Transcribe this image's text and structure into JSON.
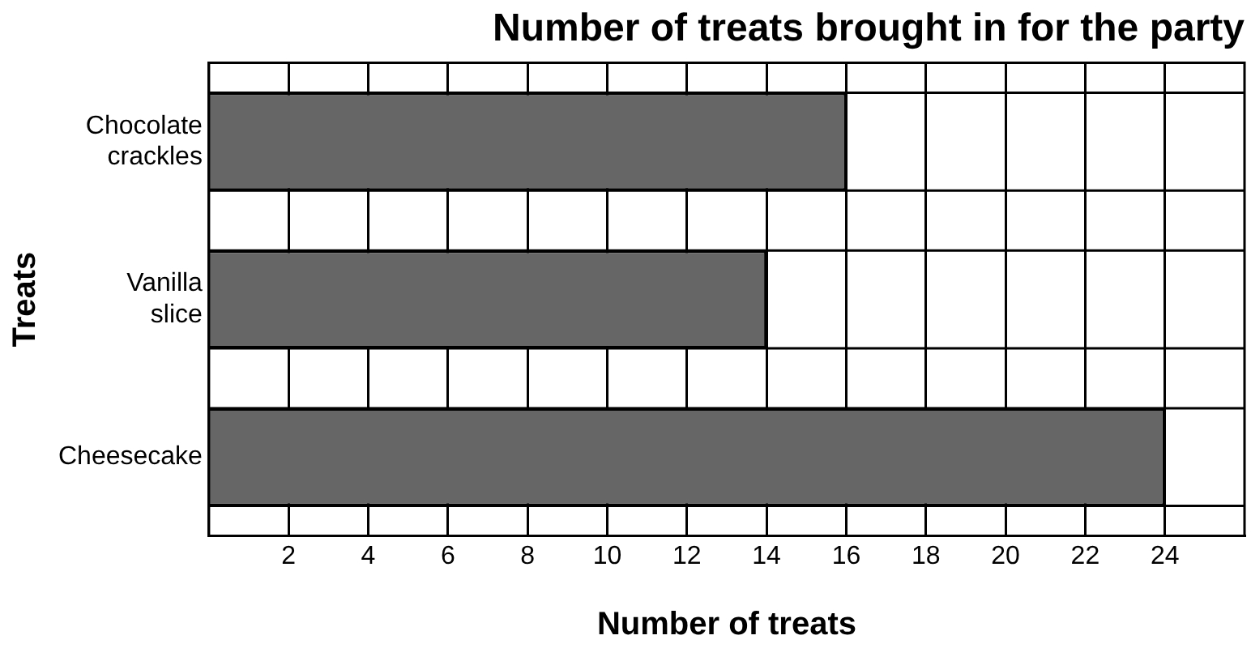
{
  "chart_data": {
    "type": "bar",
    "orientation": "horizontal",
    "title": "Number of treats brought in for the party",
    "xlabel": "Number of treats",
    "ylabel": "Treats",
    "categories": [
      "Chocolate crackles",
      "Vanilla slice",
      "Cheesecake"
    ],
    "values": [
      16,
      14,
      24
    ],
    "color": "#666666",
    "xlim": [
      0,
      26
    ],
    "xticks": [
      2,
      4,
      6,
      8,
      10,
      12,
      14,
      16,
      18,
      20,
      22,
      24
    ],
    "grid": true
  }
}
